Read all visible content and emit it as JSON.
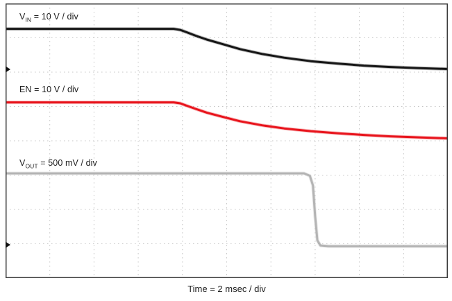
{
  "chart_data": {
    "type": "line",
    "title": "",
    "xlabel": "Time = 2 msec / div",
    "x_divisions": 10,
    "y_divisions": 8,
    "grid": {
      "style": "dotted",
      "color": "#c4c4c4"
    },
    "border_color": "#3c3c3c",
    "marker_color": "#111111",
    "series": [
      {
        "name": "VIN",
        "scale": "10 V / div",
        "label": {
          "pre": "V",
          "sub": "IN",
          "post": " = 10 V / div"
        },
        "color": "#161616",
        "points_div": [
          [
            0,
            0.74
          ],
          [
            3.8,
            0.74
          ],
          [
            3.95,
            0.77
          ],
          [
            4.1,
            0.84
          ],
          [
            4.3,
            0.94
          ],
          [
            4.55,
            1.05
          ],
          [
            4.9,
            1.18
          ],
          [
            5.3,
            1.33
          ],
          [
            5.8,
            1.47
          ],
          [
            6.3,
            1.58
          ],
          [
            6.9,
            1.68
          ],
          [
            7.5,
            1.75
          ],
          [
            8.1,
            1.81
          ],
          [
            8.7,
            1.85
          ],
          [
            9.3,
            1.88
          ],
          [
            10,
            1.91
          ]
        ]
      },
      {
        "name": "EN",
        "scale": "10 V / div",
        "label": {
          "pre": "EN",
          "sub": "",
          "post": " = 10 V / div"
        },
        "color": "#e8141c",
        "points_div": [
          [
            0,
            2.88
          ],
          [
            3.8,
            2.88
          ],
          [
            3.95,
            2.91
          ],
          [
            4.1,
            2.98
          ],
          [
            4.3,
            3.07
          ],
          [
            4.55,
            3.18
          ],
          [
            4.9,
            3.3
          ],
          [
            5.3,
            3.43
          ],
          [
            5.8,
            3.55
          ],
          [
            6.3,
            3.64
          ],
          [
            6.9,
            3.72
          ],
          [
            7.5,
            3.78
          ],
          [
            8.1,
            3.83
          ],
          [
            8.7,
            3.87
          ],
          [
            9.3,
            3.9
          ],
          [
            10,
            3.93
          ]
        ]
      },
      {
        "name": "VOUT",
        "scale": "500 mV / div",
        "label": {
          "pre": "V",
          "sub": "OUT",
          "post": " = 500 mV / div"
        },
        "color": "#b4b4b4",
        "points_div": [
          [
            0,
            4.95
          ],
          [
            6.75,
            4.95
          ],
          [
            6.88,
            5.02
          ],
          [
            6.95,
            5.3
          ],
          [
            7.0,
            6.2
          ],
          [
            7.05,
            6.9
          ],
          [
            7.12,
            7.05
          ],
          [
            7.3,
            7.07
          ],
          [
            10,
            7.07
          ]
        ]
      }
    ],
    "ref_markers": [
      {
        "y_div": 1.92
      },
      {
        "y_div": 7.03
      }
    ]
  }
}
